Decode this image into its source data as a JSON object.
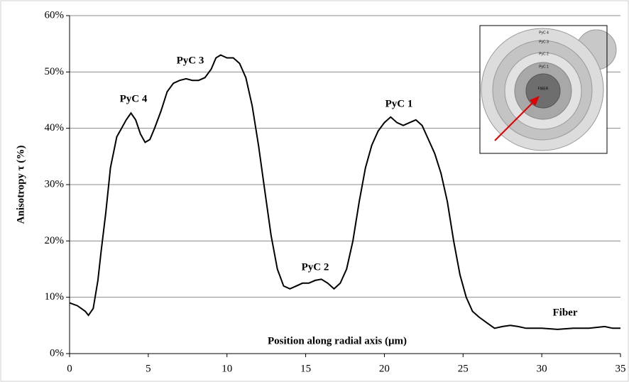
{
  "chart_data": {
    "type": "line",
    "x_label": "Position along radial axis (μm)",
    "y_label": "Anisotropy τ (%)",
    "annotations": [
      "PyC 4",
      "PyC 3",
      "PyC 2",
      "PyC 1",
      "Fiber"
    ],
    "inset_labels": [
      "PyC 4",
      "PyC 3",
      "PyC 2",
      "PyC 1",
      "FIBER"
    ],
    "grid": true,
    "xlim": [
      0,
      35
    ],
    "xticks": [
      0,
      5,
      10,
      15,
      20,
      25,
      30,
      35
    ],
    "ylim": [
      0,
      60
    ],
    "yticks": [
      {
        "value": 0,
        "label": "0%"
      },
      {
        "value": 10,
        "label": "10%"
      },
      {
        "value": 20,
        "label": "20%"
      },
      {
        "value": 30,
        "label": "30%"
      },
      {
        "value": 40,
        "label": "40%"
      },
      {
        "value": 50,
        "label": "50%"
      },
      {
        "value": 60,
        "label": "60%"
      }
    ],
    "x": [
      0,
      0.5,
      1,
      1.2,
      1.5,
      1.8,
      2,
      2.3,
      2.6,
      3,
      3.3,
      3.6,
      3.9,
      4.2,
      4.5,
      4.8,
      5.1,
      5.4,
      5.8,
      6.2,
      6.6,
      7,
      7.4,
      7.8,
      8.2,
      8.6,
      9,
      9.3,
      9.6,
      10,
      10.4,
      10.8,
      11.2,
      11.6,
      12,
      12.4,
      12.8,
      13.2,
      13.6,
      14,
      14.4,
      14.8,
      15.2,
      15.6,
      16,
      16.4,
      16.8,
      17.2,
      17.6,
      18,
      18.4,
      18.8,
      19.2,
      19.6,
      20,
      20.4,
      20.8,
      21.2,
      21.6,
      22,
      22.4,
      22.8,
      23.2,
      23.6,
      24,
      24.4,
      24.8,
      25.2,
      25.6,
      26,
      26.5,
      27,
      27.5,
      28,
      28.5,
      29,
      30,
      31,
      32,
      33,
      34,
      34.5,
      35
    ],
    "series": [
      {
        "color": "#000000",
        "values": [
          9,
          8.5,
          7.5,
          6.8,
          8,
          13,
          18,
          25,
          33,
          38.5,
          40,
          41.5,
          42.7,
          41.5,
          39,
          37.5,
          38,
          40,
          43,
          46.5,
          48,
          48.5,
          48.8,
          48.5,
          48.5,
          49,
          50.5,
          52.5,
          53,
          52.5,
          52.5,
          51.5,
          49,
          44,
          37,
          29,
          21,
          15,
          12,
          11.5,
          12,
          12.5,
          12.5,
          13,
          13.2,
          12.5,
          11.5,
          12.5,
          15,
          20,
          27,
          33,
          37,
          39.5,
          41,
          42,
          41,
          40.5,
          41,
          41.5,
          40.5,
          38,
          35.5,
          32,
          27,
          20,
          14,
          10,
          7.5,
          6.5,
          5.5,
          4.5,
          4.8,
          5,
          4.8,
          4.5,
          4.5,
          4.3,
          4.5,
          4.5,
          4.8,
          4.5,
          4.5
        ]
      }
    ]
  }
}
